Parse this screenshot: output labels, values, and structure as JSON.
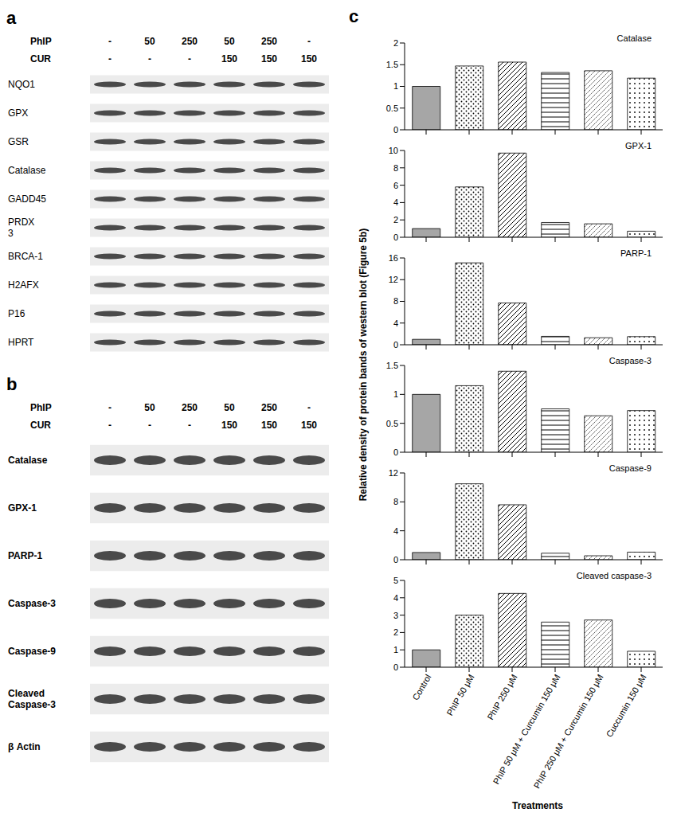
{
  "chart_data": [
    {
      "type": "bar",
      "title": "Catalase",
      "categories": [
        "Control",
        "PhIP 50 μM",
        "PhIP 250 μM",
        "PhIP 50 μM + Curcumin 150 μM",
        "PhIP 250 μM + Curcumin 150 μM",
        "Cuccumin 150 μM"
      ],
      "values": [
        1,
        1.47,
        1.56,
        1.32,
        1.36,
        1.19
      ],
      "colors": [
        "#a6a6a6",
        "#ffffff",
        "#ffffff",
        "#ffffff",
        "#ffffff",
        "#ffffff"
      ],
      "ylim": [
        0,
        2
      ],
      "yticks": [
        0,
        0.5,
        1,
        1.5,
        2
      ],
      "tick_labels": "y"
    },
    {
      "type": "bar",
      "title": "GPX-1",
      "categories": [
        "Control",
        "PhIP 50 μM",
        "PhIP 250 μM",
        "PhIP 50 μM + Curcumin 150 μM",
        "PhIP 250 μM + Curcumin 150 μM",
        "Cuccumin 150 μM"
      ],
      "values": [
        1,
        5.8,
        9.7,
        1.7,
        1.55,
        0.7
      ],
      "colors": [
        "#a6a6a6",
        "#ffffff",
        "#ffffff",
        "#ffffff",
        "#ffffff",
        "#ffffff"
      ],
      "ylim": [
        0,
        10
      ],
      "yticks": [
        0,
        2,
        4,
        6,
        8,
        10
      ],
      "tick_labels": "y"
    },
    {
      "type": "bar",
      "title": "PARP-1",
      "categories": [
        "Control",
        "PhIP 50 μM",
        "PhIP 250 μM",
        "PhIP 50 μM + Curcumin 150 μM",
        "PhIP 250 μM + Curcumin 150 μM",
        "Cuccumin 150 μM"
      ],
      "values": [
        1,
        15.1,
        7.7,
        1.55,
        1.3,
        1.5
      ],
      "colors": [
        "#a6a6a6",
        "#ffffff",
        "#ffffff",
        "#ffffff",
        "#ffffff",
        "#ffffff"
      ],
      "ylim": [
        0,
        16
      ],
      "yticks": [
        0,
        4,
        8,
        12,
        16
      ],
      "tick_labels": "y"
    },
    {
      "type": "bar",
      "title": "Caspase-3",
      "categories": [
        "Control",
        "PhIP 50 μM",
        "PhIP 250 μM",
        "PhIP 50 μM + Curcumin 150 μM",
        "PhIP 250 μM + Curcumin 150 μM",
        "Cuccumin 150 μM"
      ],
      "values": [
        1,
        1.15,
        1.4,
        0.75,
        0.63,
        0.72
      ],
      "colors": [
        "#a6a6a6",
        "#ffffff",
        "#ffffff",
        "#ffffff",
        "#ffffff",
        "#ffffff"
      ],
      "ylim": [
        0,
        1.5
      ],
      "yticks": [
        0,
        0.5,
        1,
        1.5
      ],
      "tick_labels": "y"
    },
    {
      "type": "bar",
      "title": "Caspase-9",
      "categories": [
        "Control",
        "PhIP 50 μM",
        "PhIP 250 μM",
        "PhIP 50 μM + Curcumin 150 μM",
        "PhIP 250 μM + Curcumin 150 μM",
        "Cuccumin 150 μM"
      ],
      "values": [
        1,
        10.5,
        7.6,
        0.9,
        0.55,
        1.05
      ],
      "colors": [
        "#a6a6a6",
        "#ffffff",
        "#ffffff",
        "#ffffff",
        "#ffffff",
        "#ffffff"
      ],
      "ylim": [
        0,
        12
      ],
      "yticks": [
        0,
        4,
        8,
        12
      ],
      "tick_labels": "y"
    },
    {
      "type": "bar",
      "title": "Cleaved caspase-3",
      "categories": [
        "Control",
        "PhIP 50 μM",
        "PhIP 250 μM",
        "PhIP 50 μM + Curcumin 150 μM",
        "PhIP 250 μM + Curcumin 150 μM",
        "Cuccumin 150 μM"
      ],
      "values": [
        1,
        3,
        4.25,
        2.6,
        2.72,
        0.92
      ],
      "colors": [
        "#a6a6a6",
        "#ffffff",
        "#ffffff",
        "#ffffff",
        "#ffffff",
        "#ffffff"
      ],
      "ylim": [
        0,
        5
      ],
      "yticks": [
        0,
        1,
        2,
        3,
        4,
        5
      ]
    }
  ],
  "figure": {
    "panel_labels": [
      "a",
      "b",
      "c"
    ],
    "y_label": "Relative density of protein bands of western blot (Figure 5b)",
    "x_label": "Treatments",
    "blots": [
      {
        "treatments": [
          {
            "name": "PhIP",
            "levels": [
              "-",
              "50",
              "250",
              "50",
              "250",
              "-"
            ]
          },
          {
            "name": "CUR",
            "levels": [
              "-",
              "-",
              "-",
              "150",
              "150",
              "150"
            ]
          }
        ],
        "proteins": [
          [
            "NQO1"
          ],
          [
            "GPX"
          ],
          [
            "GSR"
          ],
          [
            "Catalase"
          ],
          [
            "GADD45"
          ],
          [
            "PRDX",
            "3"
          ],
          [
            "BRCA-1"
          ],
          [
            "H2AFX"
          ],
          [
            "P16"
          ],
          [
            "HPRT"
          ]
        ]
      },
      {
        "treatments": [
          {
            "name": "PhIP",
            "levels": [
              "-",
              "50",
              "250",
              "50",
              "250",
              "-"
            ]
          },
          {
            "name": "CUR",
            "levels": [
              "-",
              "-",
              "-",
              "150",
              "150",
              "150"
            ]
          }
        ],
        "proteins": [
          [
            "Catalase"
          ],
          [
            "GPX-1"
          ],
          [
            "PARP-1"
          ],
          [
            "Caspase-3"
          ],
          [
            "Caspase-9"
          ],
          [
            "Cleaved",
            "Caspase-3"
          ],
          [
            "β Actin"
          ]
        ]
      }
    ]
  }
}
